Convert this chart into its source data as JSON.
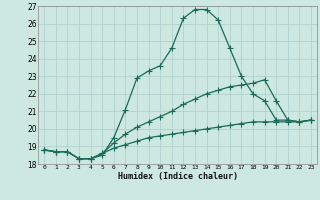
{
  "xlabel": "Humidex (Indice chaleur)",
  "bg_color": "#cce8e0",
  "line_color": "#1a6b5a",
  "grid_color": "#aacccc",
  "xlim": [
    -0.5,
    23.5
  ],
  "ylim": [
    18,
    27
  ],
  "xticks": [
    0,
    1,
    2,
    3,
    4,
    5,
    6,
    7,
    8,
    9,
    10,
    11,
    12,
    13,
    14,
    15,
    16,
    17,
    18,
    19,
    20,
    21,
    22,
    23
  ],
  "yticks": [
    18,
    19,
    20,
    21,
    22,
    23,
    24,
    25,
    26,
    27
  ],
  "line1_x": [
    0,
    1,
    2,
    3,
    4,
    5,
    6,
    7,
    8,
    9,
    10,
    11,
    12,
    13,
    14,
    15,
    16,
    17,
    18,
    19,
    20,
    21,
    22,
    23
  ],
  "line1_y": [
    18.8,
    18.7,
    18.7,
    18.3,
    18.3,
    18.5,
    19.5,
    21.1,
    22.9,
    23.3,
    23.6,
    24.6,
    26.3,
    26.8,
    26.8,
    26.2,
    24.6,
    23.0,
    22.0,
    21.6,
    20.5,
    20.5,
    20.4,
    20.5
  ],
  "line2_x": [
    0,
    1,
    2,
    3,
    4,
    5,
    6,
    7,
    8,
    9,
    10,
    11,
    12,
    13,
    14,
    15,
    16,
    17,
    18,
    19,
    20,
    21,
    22,
    23
  ],
  "line2_y": [
    18.8,
    18.7,
    18.7,
    18.3,
    18.3,
    18.6,
    19.2,
    19.7,
    20.1,
    20.4,
    20.7,
    21.0,
    21.4,
    21.7,
    22.0,
    22.2,
    22.4,
    22.5,
    22.6,
    22.8,
    21.6,
    20.5,
    20.4,
    20.5
  ],
  "line3_x": [
    0,
    1,
    2,
    3,
    4,
    5,
    6,
    7,
    8,
    9,
    10,
    11,
    12,
    13,
    14,
    15,
    16,
    17,
    18,
    19,
    20,
    21,
    22,
    23
  ],
  "line3_y": [
    18.8,
    18.7,
    18.7,
    18.3,
    18.3,
    18.6,
    18.9,
    19.1,
    19.3,
    19.5,
    19.6,
    19.7,
    19.8,
    19.9,
    20.0,
    20.1,
    20.2,
    20.3,
    20.4,
    20.4,
    20.4,
    20.4,
    20.4,
    20.5
  ]
}
